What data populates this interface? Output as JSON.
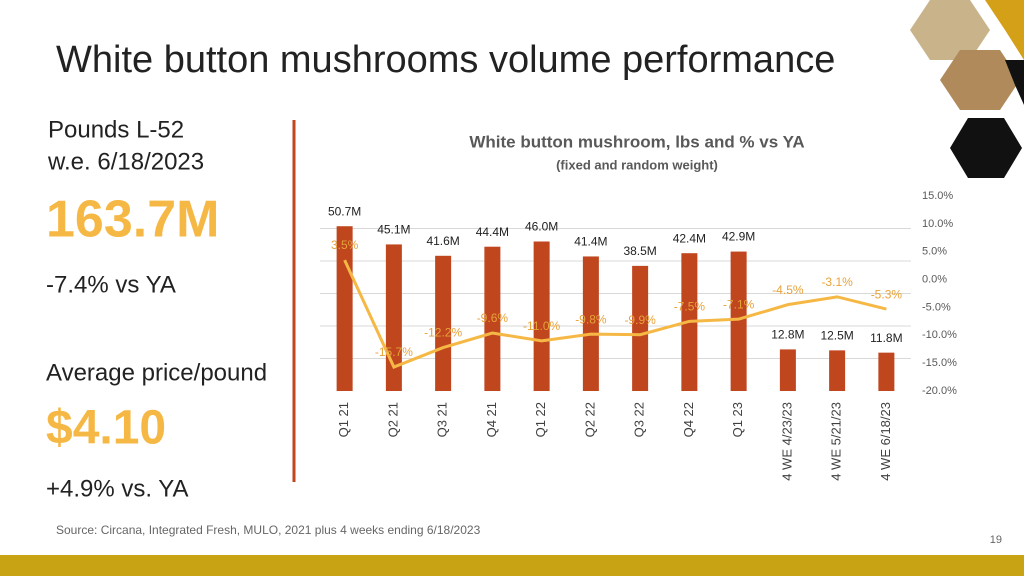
{
  "slide": {
    "title": "White button mushrooms volume performance",
    "kpi_label_1": "Pounds L-52",
    "kpi_label_2": "w.e. 6/18/2023",
    "kpi_value_1": "163.7M",
    "kpi_change_1": "-7.4% vs YA",
    "kpi_label_3": "Average price/pound",
    "kpi_value_2": "$4.10",
    "kpi_change_2": "+4.9% vs. YA",
    "source": "Source: Circana, Integrated Fresh, MULO, 2021 plus 4 weeks ending 6/18/2023",
    "page_number": "19"
  },
  "chart_data": {
    "type": "bar_line",
    "title": "White button mushroom, lbs and % vs YA",
    "subtitle": "(fixed and random weight)",
    "categories": [
      "Q1 21",
      "Q2 21",
      "Q3 21",
      "Q4 21",
      "Q1 22",
      "Q2 22",
      "Q3 22",
      "Q4 22",
      "Q1 23",
      "4 WE 4/23/23",
      "4 WE 5/21/23",
      "4 WE 6/18/23"
    ],
    "ylim": [
      0,
      60
    ],
    "yticks": [
      10,
      20,
      30,
      40,
      50
    ],
    "grid": true,
    "y2lim": [
      -20,
      15
    ],
    "y2ticks": [
      {
        "value": 15,
        "label": "15.0%"
      },
      {
        "value": 10,
        "label": "10.0%"
      },
      {
        "value": 5,
        "label": "5.0%"
      },
      {
        "value": 0,
        "label": "0.0%"
      },
      {
        "value": -5,
        "label": "-5.0%"
      },
      {
        "value": -10,
        "label": "-10.0%"
      },
      {
        "value": -15,
        "label": "-15.0%"
      },
      {
        "value": -20,
        "label": "-20.0%"
      }
    ],
    "series": [
      {
        "type": "bar",
        "color": "#c0461e",
        "values": [
          50.7,
          45.1,
          41.6,
          44.4,
          46.0,
          41.4,
          38.5,
          42.4,
          42.9,
          12.8,
          12.5,
          11.8
        ],
        "value_labels": [
          "50.7M",
          "45.1M",
          "41.6M",
          "44.4M",
          "46.0M",
          "41.4M",
          "38.5M",
          "42.4M",
          "42.9M",
          "12.8M",
          "12.5M",
          "11.8M"
        ]
      },
      {
        "type": "line",
        "axis": "y2",
        "color": "#f6b845",
        "values": [
          3.5,
          -15.7,
          -12.2,
          -9.6,
          -11.0,
          -9.8,
          -9.9,
          -7.5,
          -7.1,
          -4.5,
          -3.1,
          -5.3
        ],
        "value_labels": [
          "3.5%",
          "-15.7%",
          "-12.2%",
          "-9.6%",
          "-11.0%",
          "-9.8%",
          "-9.9%",
          "-7.5%",
          "-7.1%",
          "-4.5%",
          "-3.1%",
          "-5.3%"
        ]
      }
    ]
  }
}
